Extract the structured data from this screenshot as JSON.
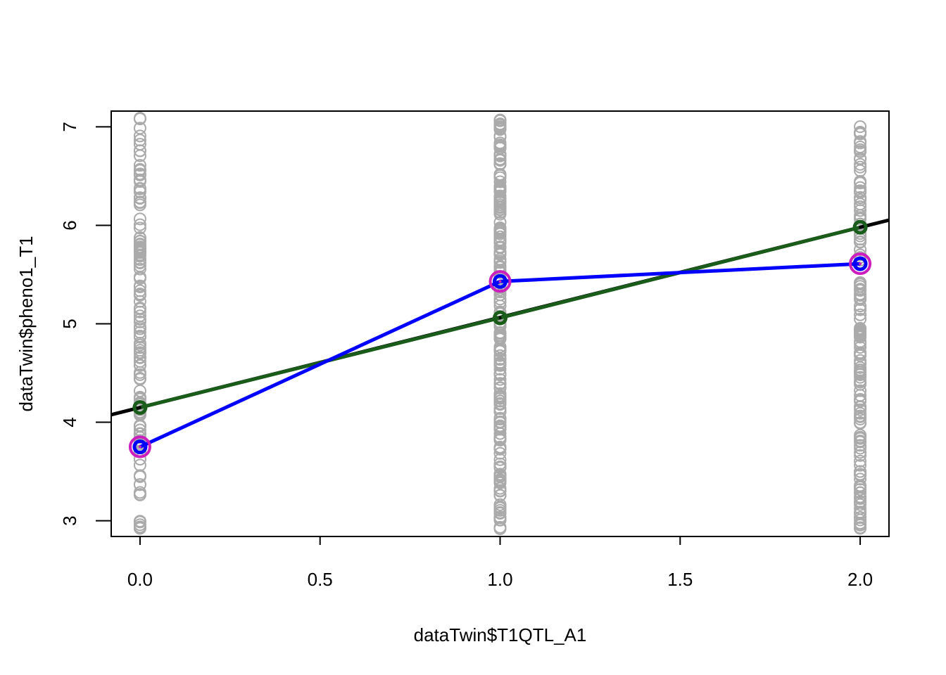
{
  "chart_data": {
    "type": "scatter",
    "title": "",
    "xlabel": "dataTwin$T1QTL_A1",
    "ylabel": "dataTwin$pheno1_T1",
    "xlim": [
      -0.08,
      2.08
    ],
    "ylim": [
      2.84,
      7.16
    ],
    "x_ticks": [
      0.0,
      0.5,
      1.0,
      1.5,
      2.0
    ],
    "x_tick_labels": [
      "0.0",
      "0.5",
      "1.0",
      "1.5",
      "2.0"
    ],
    "y_ticks": [
      3,
      4,
      5,
      6,
      7
    ],
    "y_tick_labels": [
      "3",
      "4",
      "5",
      "6",
      "7"
    ],
    "grid": false,
    "colors": {
      "points": "#aaaaaa",
      "regression_line": "#000000",
      "fitted_line": "#1a5c1a",
      "fitted_points": "#1a5c1a",
      "means_line": "#0000ff",
      "means_ring": "#cc1ebd",
      "frame": "#000000"
    },
    "raw_points": {
      "x_levels": [
        0,
        1,
        2
      ],
      "y_range": [
        2.9,
        7.1
      ],
      "approx_count_per_level": [
        140,
        220,
        150
      ]
    },
    "regression_line": {
      "intercept": 4.15,
      "slope": 0.915
    },
    "fitted_values": {
      "x": [
        0,
        1,
        2
      ],
      "y": [
        4.15,
        5.06,
        5.98
      ]
    },
    "group_means": {
      "x": [
        0,
        1,
        2
      ],
      "y": [
        3.75,
        5.43,
        5.61
      ]
    }
  }
}
